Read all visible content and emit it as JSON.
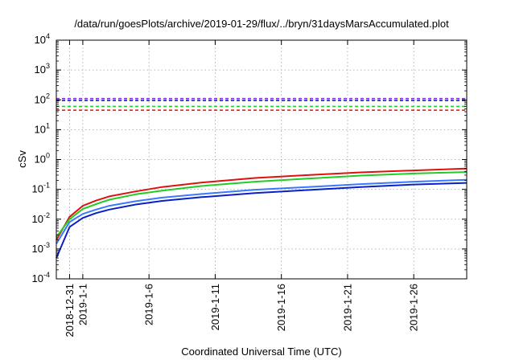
{
  "chart_data": {
    "type": "line",
    "title": "/data/run/goesPlots/archive/2019-01-29/flux/../bryn/31daysMarsAccumulated.plot",
    "xlabel": "Coordinated Universal Time (UTC)",
    "ylabel": "cSv",
    "y_scale": "log",
    "ylim": [
      0.0001,
      10000
    ],
    "xlim": [
      "2018-12-30",
      "2019-01-30"
    ],
    "grid": true,
    "y_ticks": [
      {
        "value": 0.0001,
        "base": "10",
        "exp": "-4"
      },
      {
        "value": 0.001,
        "base": "10",
        "exp": "-3"
      },
      {
        "value": 0.01,
        "base": "10",
        "exp": "-2"
      },
      {
        "value": 0.1,
        "base": "10",
        "exp": "-1"
      },
      {
        "value": 1,
        "base": "10",
        "exp": "0"
      },
      {
        "value": 10,
        "base": "10",
        "exp": "1"
      },
      {
        "value": 100,
        "base": "10",
        "exp": "2"
      },
      {
        "value": 1000,
        "base": "10",
        "exp": "3"
      },
      {
        "value": 10000,
        "base": "10",
        "exp": "4"
      }
    ],
    "x_ticks": [
      {
        "date": "2018-12-31",
        "label": "2018-12-31"
      },
      {
        "date": "2019-01-01",
        "label": "2019-1-1"
      },
      {
        "date": "2019-01-06",
        "label": "2019-1-6"
      },
      {
        "date": "2019-01-11",
        "label": "2019-1-11"
      },
      {
        "date": "2019-01-16",
        "label": "2019-1-16"
      },
      {
        "date": "2019-01-21",
        "label": "2019-1-21"
      },
      {
        "date": "2019-01-26",
        "label": "2019-1-26"
      }
    ],
    "thresholds": [
      {
        "value": 110,
        "color": "#8a2be2"
      },
      {
        "value": 95,
        "color": "#1f1fd0"
      },
      {
        "value": 60,
        "color": "#22cc22"
      },
      {
        "value": 45,
        "color": "#e01010"
      }
    ],
    "series": [
      {
        "color": "#e01010",
        "x": [
          "2018-12-30",
          "2018-12-31",
          "2019-01-01",
          "2019-01-02",
          "2019-01-03",
          "2019-01-05",
          "2019-01-07",
          "2019-01-10",
          "2019-01-14",
          "2019-01-18",
          "2019-01-22",
          "2019-01-26",
          "2019-01-30"
        ],
        "y": [
          0.002,
          0.012,
          0.028,
          0.042,
          0.058,
          0.085,
          0.12,
          0.17,
          0.24,
          0.3,
          0.37,
          0.43,
          0.5
        ]
      },
      {
        "color": "#22cc22",
        "x": [
          "2018-12-30",
          "2018-12-31",
          "2019-01-01",
          "2019-01-02",
          "2019-01-03",
          "2019-01-05",
          "2019-01-07",
          "2019-01-10",
          "2019-01-14",
          "2019-01-18",
          "2019-01-22",
          "2019-01-26",
          "2019-01-30"
        ],
        "y": [
          0.0025,
          0.01,
          0.022,
          0.032,
          0.045,
          0.068,
          0.09,
          0.13,
          0.18,
          0.23,
          0.29,
          0.34,
          0.38
        ]
      },
      {
        "color": "#3a78ff",
        "x": [
          "2018-12-30",
          "2018-12-31",
          "2019-01-01",
          "2019-01-02",
          "2019-01-03",
          "2019-01-05",
          "2019-01-07",
          "2019-01-10",
          "2019-01-14",
          "2019-01-18",
          "2019-01-22",
          "2019-01-26",
          "2019-01-30"
        ],
        "y": [
          0.0015,
          0.008,
          0.015,
          0.021,
          0.028,
          0.04,
          0.053,
          0.07,
          0.097,
          0.12,
          0.15,
          0.18,
          0.21
        ]
      },
      {
        "color": "#0a1fc8",
        "x": [
          "2018-12-30",
          "2018-12-31",
          "2019-01-01",
          "2019-01-02",
          "2019-01-03",
          "2019-01-05",
          "2019-01-07",
          "2019-01-10",
          "2019-01-14",
          "2019-01-18",
          "2019-01-22",
          "2019-01-26",
          "2019-01-30"
        ],
        "y": [
          0.0005,
          0.0055,
          0.011,
          0.016,
          0.021,
          0.031,
          0.041,
          0.055,
          0.075,
          0.095,
          0.12,
          0.145,
          0.165
        ]
      }
    ]
  }
}
